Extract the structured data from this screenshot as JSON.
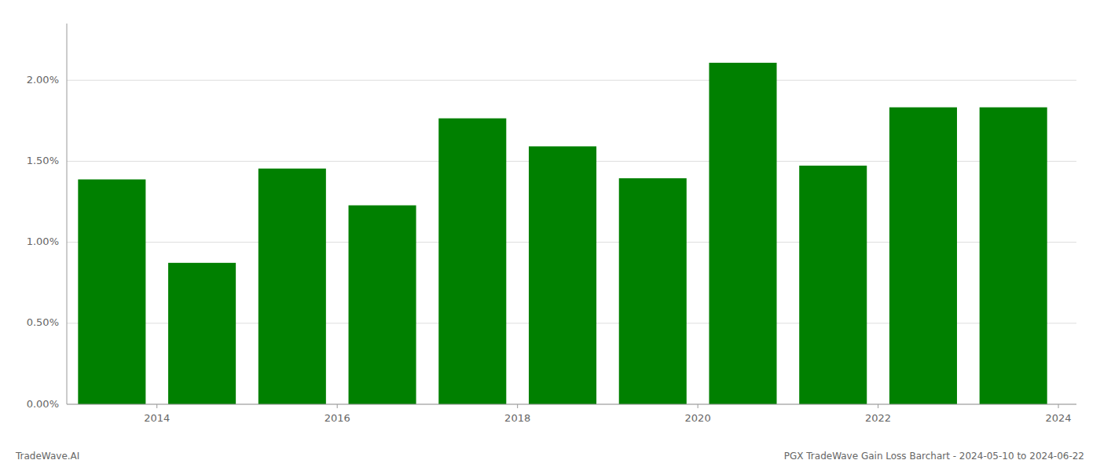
{
  "chart_data": {
    "type": "bar",
    "title": "PGX TradeWave Gain Loss Barchart - 2024-05-10 to 2024-06-22",
    "annotations": [
      "TradeWave.AI"
    ],
    "x": [
      2013.5,
      2014.5,
      2015.5,
      2016.5,
      2017.5,
      2018.5,
      2019.5,
      2020.5,
      2021.5,
      2022.5,
      2023.5
    ],
    "values": [
      0.01388,
      0.00873,
      0.01455,
      0.01228,
      0.01765,
      0.01592,
      0.01395,
      0.02108,
      0.01473,
      0.01833,
      0.01833
    ],
    "color": "#008000",
    "xlim": [
      2013.0,
      2024.2
    ],
    "xticks": [
      2014,
      2016,
      2018,
      2020,
      2022,
      2024
    ],
    "ylim": [
      0,
      0.0235
    ],
    "yticks": [
      {
        "value": 0.0,
        "label": "0.00%"
      },
      {
        "value": 0.005,
        "label": "0.50%"
      },
      {
        "value": 0.01,
        "label": "1.00%"
      },
      {
        "value": 0.015,
        "label": "1.50%"
      },
      {
        "value": 0.02,
        "label": "2.00%"
      }
    ],
    "grid": true
  }
}
